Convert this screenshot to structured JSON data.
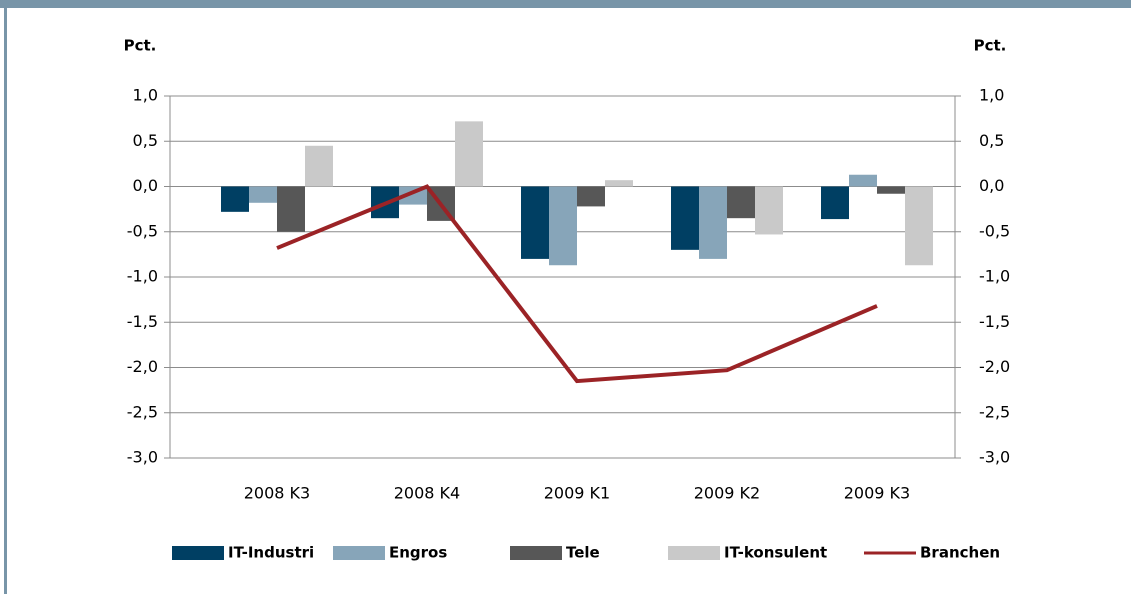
{
  "chart_data": {
    "type": "bar",
    "categories": [
      "2008 K3",
      "2008 K4",
      "2009 K1",
      "2009 K2",
      "2009 K3"
    ],
    "series": [
      {
        "name": "IT-Industri",
        "color": "#003f63",
        "values": [
          -0.28,
          -0.35,
          -0.8,
          -0.7,
          -0.36
        ]
      },
      {
        "name": "Engros",
        "color": "#87a5b9",
        "values": [
          -0.18,
          -0.2,
          -0.87,
          -0.8,
          0.13
        ]
      },
      {
        "name": "Tele",
        "color": "#575757",
        "values": [
          -0.5,
          -0.38,
          -0.22,
          -0.35,
          -0.08
        ]
      },
      {
        "name": "IT-konsulent",
        "color": "#c9c9c9",
        "values": [
          0.45,
          0.72,
          0.07,
          -0.53,
          -0.87
        ]
      },
      {
        "name": "Branchen",
        "color": "#9b2326",
        "type": "line",
        "values": [
          -0.68,
          0.0,
          -2.15,
          -2.03,
          -1.32
        ]
      }
    ],
    "ylabel": "Pct.",
    "y2label": "Pct.",
    "ylim": [
      -3,
      1
    ],
    "yticks": [
      {
        "value": 1,
        "label": "1,0"
      },
      {
        "value": 0.5,
        "label": "0,5"
      },
      {
        "value": 0,
        "label": "0,0"
      },
      {
        "value": -0.5,
        "label": "-0,5"
      },
      {
        "value": -1,
        "label": "-1,0"
      },
      {
        "value": -1.5,
        "label": "-1,5"
      },
      {
        "value": -2,
        "label": "-2,0"
      },
      {
        "value": -2.5,
        "label": "-2,5"
      },
      {
        "value": -3,
        "label": "-3,0"
      }
    ],
    "y2lim": [
      -3,
      1
    ],
    "y2ticks": [
      {
        "value": 1,
        "label": "1,0"
      },
      {
        "value": 0.5,
        "label": "0,5"
      },
      {
        "value": 0,
        "label": "0,0"
      },
      {
        "value": -0.5,
        "label": "-0,5"
      },
      {
        "value": -1,
        "label": "-1,0"
      },
      {
        "value": -1.5,
        "label": "-1,5"
      },
      {
        "value": -2,
        "label": "-2,0"
      },
      {
        "value": -2.5,
        "label": "-2,5"
      },
      {
        "value": -3,
        "label": "-3,0"
      }
    ],
    "grid": true,
    "legend": "bottom"
  }
}
